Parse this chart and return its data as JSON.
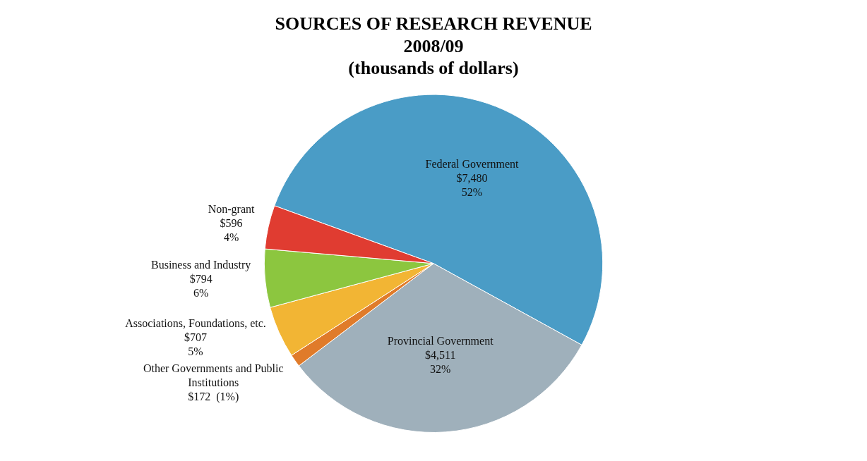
{
  "chart_data": {
    "type": "pie",
    "title": "SOURCES OF RESEARCH REVENUE\n2008/09\n(thousands of dollars)",
    "categories": [
      "Federal Government",
      "Provincial Government",
      "Other Governments and Public Institutions",
      "Associations, Foundations, etc.",
      "Business and Industry",
      "Non-grant"
    ],
    "values": [
      7480,
      4511,
      172,
      707,
      794,
      596
    ],
    "colors": [
      "#4a9cc6",
      "#9fb0bb",
      "#e07b2a",
      "#f2b534",
      "#8cc63f",
      "#e03c31"
    ],
    "value_labels": [
      "$7,480\n52%",
      "$4,511\n32%",
      "$172  (1%)",
      "$707\n5%",
      "$794\n6%",
      "$596\n4%"
    ],
    "legend": false
  }
}
